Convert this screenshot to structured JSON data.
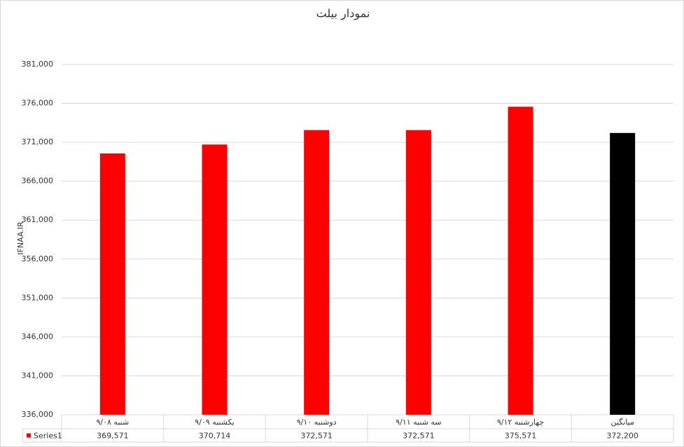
{
  "chart_data": {
    "type": "bar",
    "title": "نمودار بیلت",
    "y_label": "IFNAA.IR",
    "categories": [
      "شنبه ۹/۰۸",
      "یکشنبه ۹/۰۹",
      "دوشنبه ۹/۱۰",
      "سه شنبه ۹/۱۱",
      "چهارشنبه ۹/۱۲",
      "میانگین"
    ],
    "series": [
      {
        "name": "Series1",
        "color": "#ff0000",
        "colors": [
          "#ff0000",
          "#ff0000",
          "#ff0000",
          "#ff0000",
          "#ff0000",
          "#000000"
        ],
        "values": [
          369571,
          370714,
          372571,
          372571,
          375571,
          372200
        ],
        "value_labels": [
          "369,571",
          "370,714",
          "372,571",
          "372,571",
          "375,571",
          "372,200"
        ]
      }
    ],
    "ylim": [
      336000,
      381000
    ],
    "yticks": [
      {
        "value": 336000,
        "label": "336,000"
      },
      {
        "value": 341000,
        "label": "341,000"
      },
      {
        "value": 346000,
        "label": "346,000"
      },
      {
        "value": 351000,
        "label": "351,000"
      },
      {
        "value": 356000,
        "label": "356,000"
      },
      {
        "value": 361000,
        "label": "361,000"
      },
      {
        "value": 366000,
        "label": "366,000"
      },
      {
        "value": 371000,
        "label": "371,000"
      },
      {
        "value": 376000,
        "label": "376,000"
      },
      {
        "value": 381000,
        "label": "381,000"
      }
    ],
    "grid": true
  }
}
